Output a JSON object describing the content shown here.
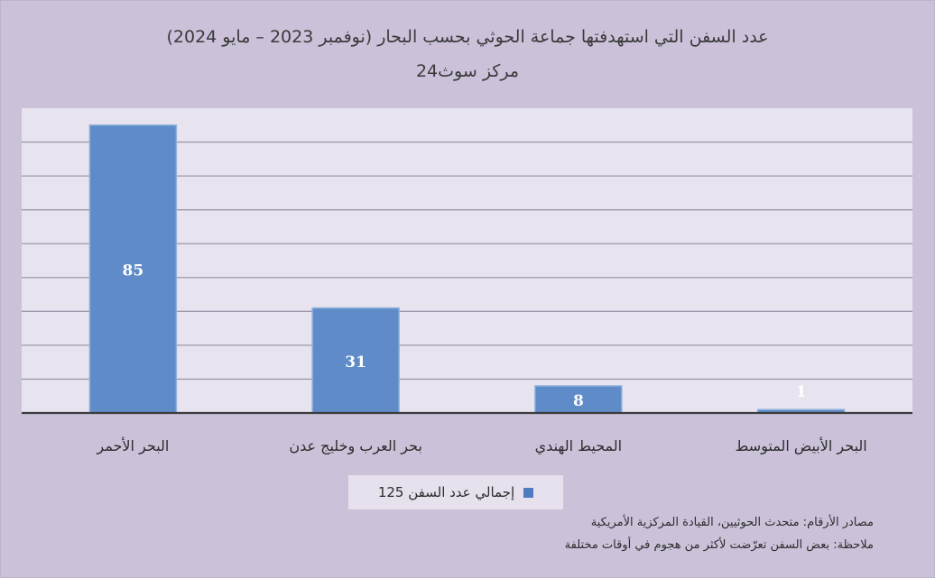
{
  "chart_data": {
    "type": "bar",
    "title": "عدد السفن التي استهدفتها جماعة الحوثي بحسب البحار (نوفمبر 2023 – مايو 2024)",
    "subtitle": "مركز سوث24",
    "categories": [
      "البحر الأحمر",
      "بحر العرب وخليج عدن",
      "المحيط الهندي",
      "البحر الأبيض المتوسط"
    ],
    "values": [
      85,
      31,
      8,
      1
    ],
    "data_labels": [
      "85",
      "31",
      "8",
      "1"
    ],
    "legend": {
      "label": "إجمالي عدد السفن 125",
      "position": "bottom"
    },
    "ylim": [
      0,
      90
    ],
    "grid": true,
    "colors": {
      "bar": "#5f8cc8",
      "bar_border": "#8fb0dc",
      "plot_bg": "#e8e4ef",
      "grid": "#9e97ab",
      "axis": "#3b3b3b"
    }
  },
  "notes": {
    "sources": "مصادر الأرقام: متحدث الحوثيين، القيادة المركزية الأمريكية",
    "remark": "ملاحظة: بعض السفن تعرّضت لأكثر من هجوم في أوقات مختلفة"
  }
}
